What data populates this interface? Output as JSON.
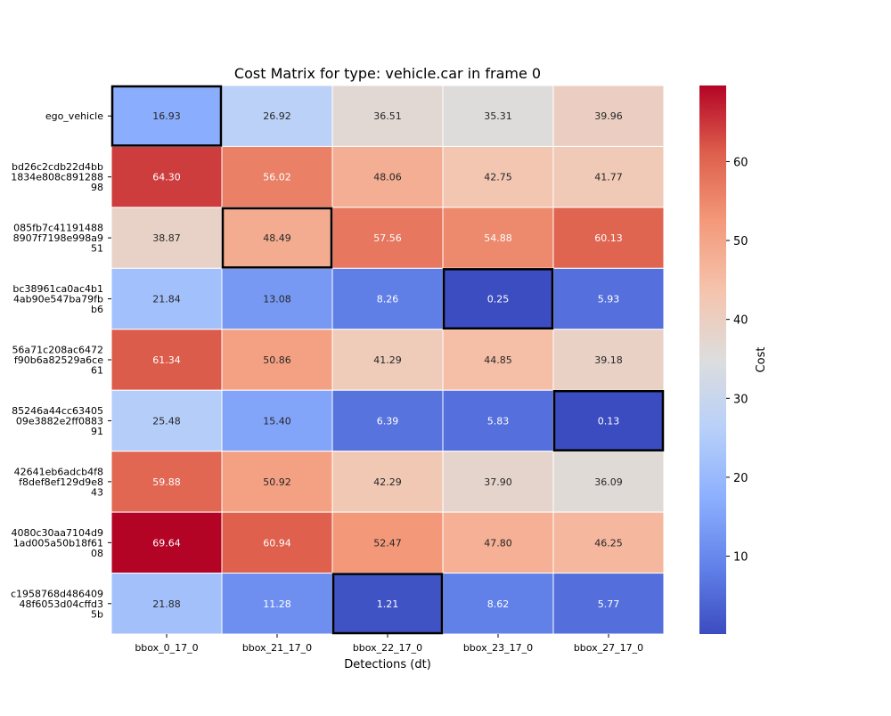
{
  "chart_data": {
    "type": "heatmap",
    "title": "Cost Matrix for type: vehicle.car in frame 0",
    "xlabel": "Detections (dt)",
    "ylabel": "",
    "colorbar_label": "Cost",
    "colormap": "coolwarm",
    "value_range": [
      0.13,
      69.64
    ],
    "colorbar_ticks": [
      10,
      20,
      30,
      40,
      50,
      60
    ],
    "x_categories": [
      "bbox_0_17_0",
      "bbox_21_17_0",
      "bbox_22_17_0",
      "bbox_23_17_0",
      "bbox_27_17_0"
    ],
    "y_categories": [
      [
        "ego_vehicle"
      ],
      [
        "bd26c2cdb22d4bb",
        "1834e808c891288",
        "98"
      ],
      [
        "085fb7c41191488",
        "8907f7198e998a9",
        "51"
      ],
      [
        "bc38961ca0ac4b1",
        "4ab90e547ba79fb",
        "b6"
      ],
      [
        "56a71c208ac6472",
        "f90b6a82529a6ce",
        "61"
      ],
      [
        "85246a44cc63405",
        "09e3882e2ff0883",
        "91"
      ],
      [
        "42641eb6adcb4f8",
        "f8def8ef129d9e8",
        "43"
      ],
      [
        "4080c30aa7104d9",
        "1ad005a50b18f61",
        "08"
      ],
      [
        "c1958768d486409",
        "48f6053d04cffd3",
        "5b"
      ]
    ],
    "values": [
      [
        16.93,
        26.92,
        36.51,
        35.31,
        39.96
      ],
      [
        64.3,
        56.02,
        48.06,
        42.75,
        41.77
      ],
      [
        38.87,
        48.49,
        57.56,
        54.88,
        60.13
      ],
      [
        21.84,
        13.08,
        8.26,
        0.25,
        5.93
      ],
      [
        61.34,
        50.86,
        41.29,
        44.85,
        39.18
      ],
      [
        25.48,
        15.4,
        6.39,
        5.83,
        0.13
      ],
      [
        59.88,
        50.92,
        42.29,
        37.9,
        36.09
      ],
      [
        69.64,
        60.94,
        52.47,
        47.8,
        46.25
      ],
      [
        21.88,
        11.28,
        1.21,
        8.62,
        5.77
      ]
    ],
    "highlighted_cells": [
      [
        0,
        0
      ],
      [
        2,
        1
      ],
      [
        3,
        3
      ],
      [
        5,
        4
      ],
      [
        8,
        2
      ]
    ],
    "grid": false,
    "legend": "colorbar-right"
  }
}
